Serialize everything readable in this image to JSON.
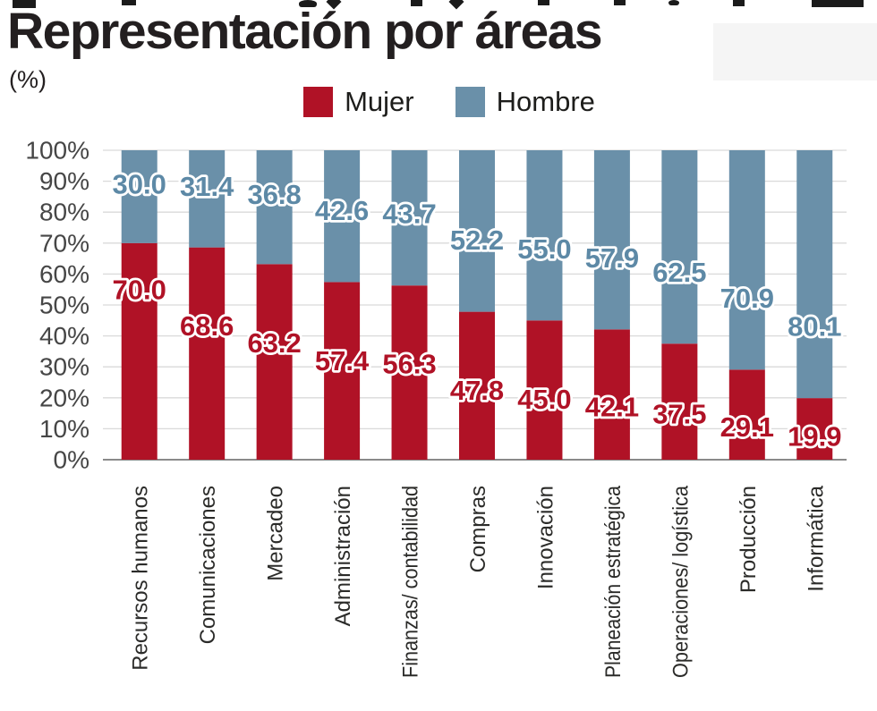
{
  "header": {
    "title": "Representación por áreas",
    "subtitle": "(%)"
  },
  "chart_data": {
    "type": "bar",
    "stacked": true,
    "orientation": "vertical",
    "title": "Representación por áreas",
    "units": "(%)",
    "categories": [
      "Recursos humanos",
      "Comunicaciones",
      "Mercadeo",
      "Administración",
      "Finanzas/ contabilidad",
      "Compras",
      "Innovación",
      "Planeación estratégica",
      "Operaciones/ logística",
      "Producción",
      "Informática"
    ],
    "series": [
      {
        "name": "Mujer",
        "color": "#b01226",
        "label_color": "#b01226",
        "values": [
          70.0,
          68.6,
          63.2,
          57.4,
          56.3,
          47.8,
          45.0,
          42.1,
          37.5,
          29.1,
          19.9
        ]
      },
      {
        "name": "Hombre",
        "color": "#6a90a9",
        "label_color": "#5d89a6",
        "values": [
          30.0,
          31.4,
          36.8,
          42.6,
          43.7,
          52.2,
          55.0,
          57.9,
          62.5,
          70.9,
          80.1
        ]
      }
    ],
    "ylim": [
      0,
      100
    ],
    "ytick_step": 10,
    "ytick_suffix": "%",
    "grid": true,
    "value_labels": true,
    "legend_position": "top-center"
  }
}
